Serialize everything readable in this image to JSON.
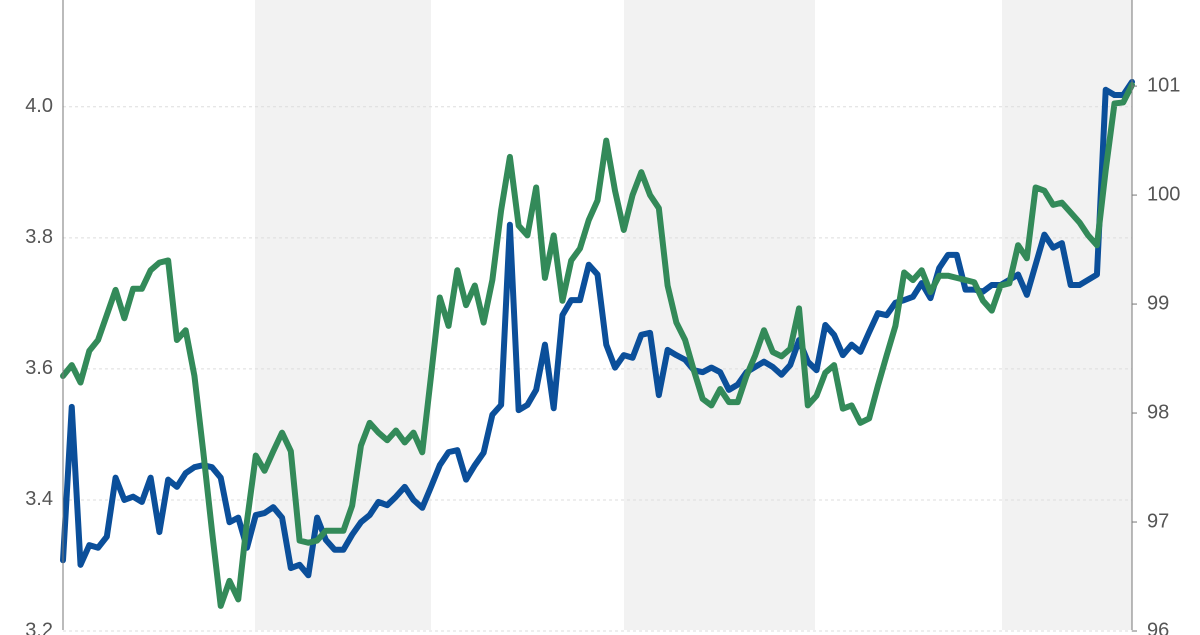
{
  "chart_data": {
    "type": "line",
    "grid": true,
    "ylim": [
      3.2,
      4.163
    ],
    "yticks": [
      3.2,
      3.4,
      3.6,
      3.8,
      {
        "value": 4,
        "label": "4.0"
      }
    ],
    "y2lim": [
      96,
      101.79
    ],
    "y2ticks": [
      96,
      97,
      98,
      99,
      100,
      101
    ],
    "series": [
      {
        "color": "#0b4f9a",
        "values": [
          3.308,
          3.542,
          3.301,
          3.331,
          3.327,
          3.344,
          3.434,
          3.4,
          3.405,
          3.397,
          3.434,
          3.351,
          3.431,
          3.42,
          3.441,
          3.45,
          3.453,
          3.45,
          3.434,
          3.366,
          3.373,
          3.327,
          3.377,
          3.38,
          3.389,
          3.373,
          3.296,
          3.301,
          3.285,
          3.373,
          3.339,
          3.324,
          3.324,
          3.347,
          3.366,
          3.377,
          3.397,
          3.392,
          3.405,
          3.42,
          3.4,
          3.388,
          3.42,
          3.453,
          3.473,
          3.476,
          3.431,
          3.453,
          3.472,
          3.53,
          3.545,
          3.82,
          3.537,
          3.545,
          3.568,
          3.637,
          3.54,
          3.682,
          3.705,
          3.705,
          3.759,
          3.744,
          3.637,
          3.602,
          3.621,
          3.617,
          3.652,
          3.655,
          3.56,
          3.629,
          3.621,
          3.614,
          3.598,
          3.595,
          3.602,
          3.595,
          3.568,
          3.576,
          3.595,
          3.603,
          3.611,
          3.603,
          3.591,
          3.606,
          3.644,
          3.611,
          3.598,
          3.667,
          3.652,
          3.621,
          3.637,
          3.626,
          3.656,
          3.685,
          3.682,
          3.701,
          3.705,
          3.71,
          3.731,
          3.708,
          3.754,
          3.774,
          3.774,
          3.721,
          3.721,
          3.718,
          3.728,
          3.728,
          3.736,
          3.744,
          3.713,
          3.759,
          3.805,
          3.785,
          3.792,
          3.728,
          3.728,
          3.736,
          3.744,
          4.026,
          4.018,
          4.018,
          4.038
        ]
      },
      {
        "color": "#338a59",
        "axis": "y2",
        "values": [
          98.34,
          98.44,
          98.28,
          98.57,
          98.67,
          98.9,
          99.13,
          98.87,
          99.14,
          99.14,
          99.31,
          99.38,
          99.4,
          98.67,
          98.76,
          98.34,
          97.65,
          96.92,
          96.23,
          96.46,
          96.29,
          97.01,
          97.61,
          97.47,
          97.65,
          97.82,
          97.65,
          96.83,
          96.81,
          96.83,
          96.92,
          96.92,
          96.92,
          97.15,
          97.7,
          97.91,
          97.82,
          97.75,
          97.84,
          97.73,
          97.82,
          97.64,
          98.34,
          99.06,
          98.8,
          99.31,
          98.99,
          99.17,
          98.83,
          99.22,
          99.86,
          100.35,
          99.72,
          99.63,
          100.07,
          99.24,
          99.63,
          99.03,
          99.4,
          99.51,
          99.77,
          99.95,
          100.5,
          100.04,
          99.68,
          100,
          100.21,
          100,
          99.88,
          99.17,
          98.83,
          98.67,
          98.39,
          98.13,
          98.07,
          98.22,
          98.1,
          98.1,
          98.34,
          98.53,
          98.76,
          98.56,
          98.52,
          98.59,
          98.96,
          98.07,
          98.16,
          98.37,
          98.44,
          98.04,
          98.07,
          97.91,
          97.95,
          98.25,
          98.53,
          98.8,
          99.29,
          99.22,
          99.31,
          99.11,
          99.26,
          99.26,
          99.24,
          99.22,
          99.2,
          99.03,
          98.94,
          99.17,
          99.19,
          99.54,
          99.42,
          100.07,
          100.04,
          99.91,
          99.93,
          99.84,
          99.75,
          99.63,
          99.54,
          100.23,
          100.84,
          100.85,
          101.01
        ]
      }
    ]
  }
}
